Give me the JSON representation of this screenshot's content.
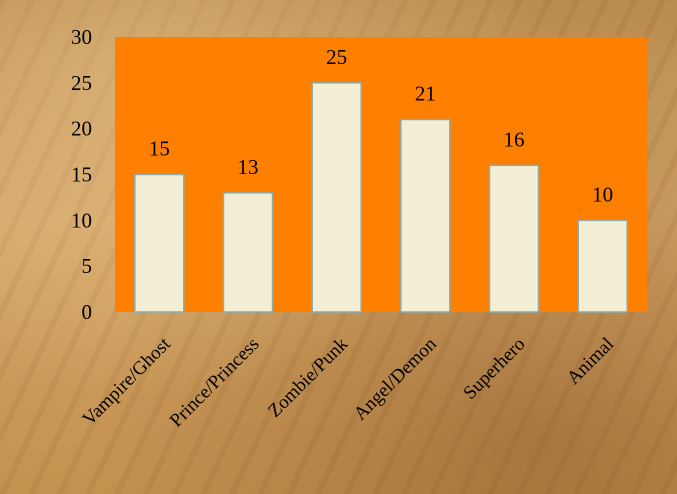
{
  "chart_data": {
    "type": "bar",
    "categories": [
      "Vampire/Ghost",
      "Prince/Princess",
      "Zombie/Punk",
      "Angel/Demon",
      "Superhero",
      "Animal"
    ],
    "values": [
      15,
      13,
      25,
      21,
      16,
      10
    ],
    "ylim": [
      0,
      30
    ],
    "yticks": [
      "0",
      "5",
      "10",
      "15",
      "20",
      "25",
      "30"
    ],
    "data_labels": [
      "15",
      "13",
      "25",
      "21",
      "16",
      "10"
    ],
    "grid": false,
    "legend": "none"
  },
  "colors": {
    "plot_background": "#ff8000",
    "bar_fill": "#f3efd6",
    "bar_stroke": "#8fa9a8",
    "text": "#000000"
  }
}
